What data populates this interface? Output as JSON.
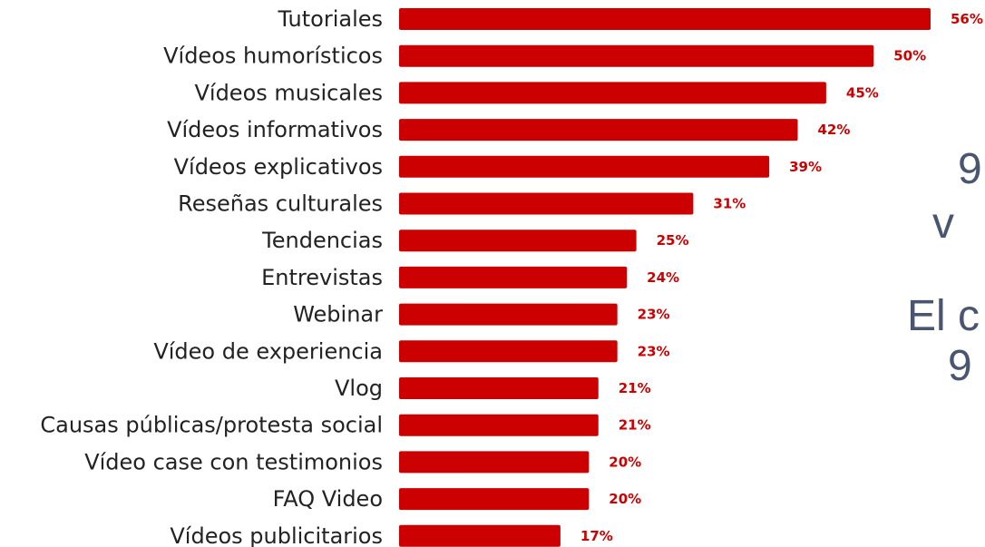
{
  "chart_data": {
    "type": "bar",
    "orientation": "horizontal",
    "categories": [
      "Tutoriales",
      "Vídeos humorísticos",
      "Vídeos musicales",
      "Vídeos informativos",
      "Vídeos explicativos",
      "Reseñas culturales",
      "Tendencias",
      "Entrevistas",
      "Webinar",
      "Vídeo de experiencia",
      "Vlog",
      "Causas públicas/protesta social",
      "Vídeo case con testimonios",
      "FAQ Video",
      "Vídeos publicitarios"
    ],
    "values": [
      56,
      50,
      45,
      42,
      39,
      31,
      25,
      24,
      23,
      23,
      21,
      21,
      20,
      20,
      17
    ],
    "value_labels": [
      "56%",
      "50%",
      "45%",
      "42%",
      "39%",
      "31%",
      "25%",
      "24%",
      "23%",
      "23%",
      "21%",
      "21%",
      "20%",
      "20%",
      "17%"
    ],
    "unit": "%",
    "bar_color": "#cc0000",
    "label_color": "#cc0000",
    "xlim": [
      0,
      56
    ]
  },
  "side_text": {
    "color": "#4a5670",
    "lines": [
      "9",
      "v",
      "El c",
      "9"
    ]
  }
}
